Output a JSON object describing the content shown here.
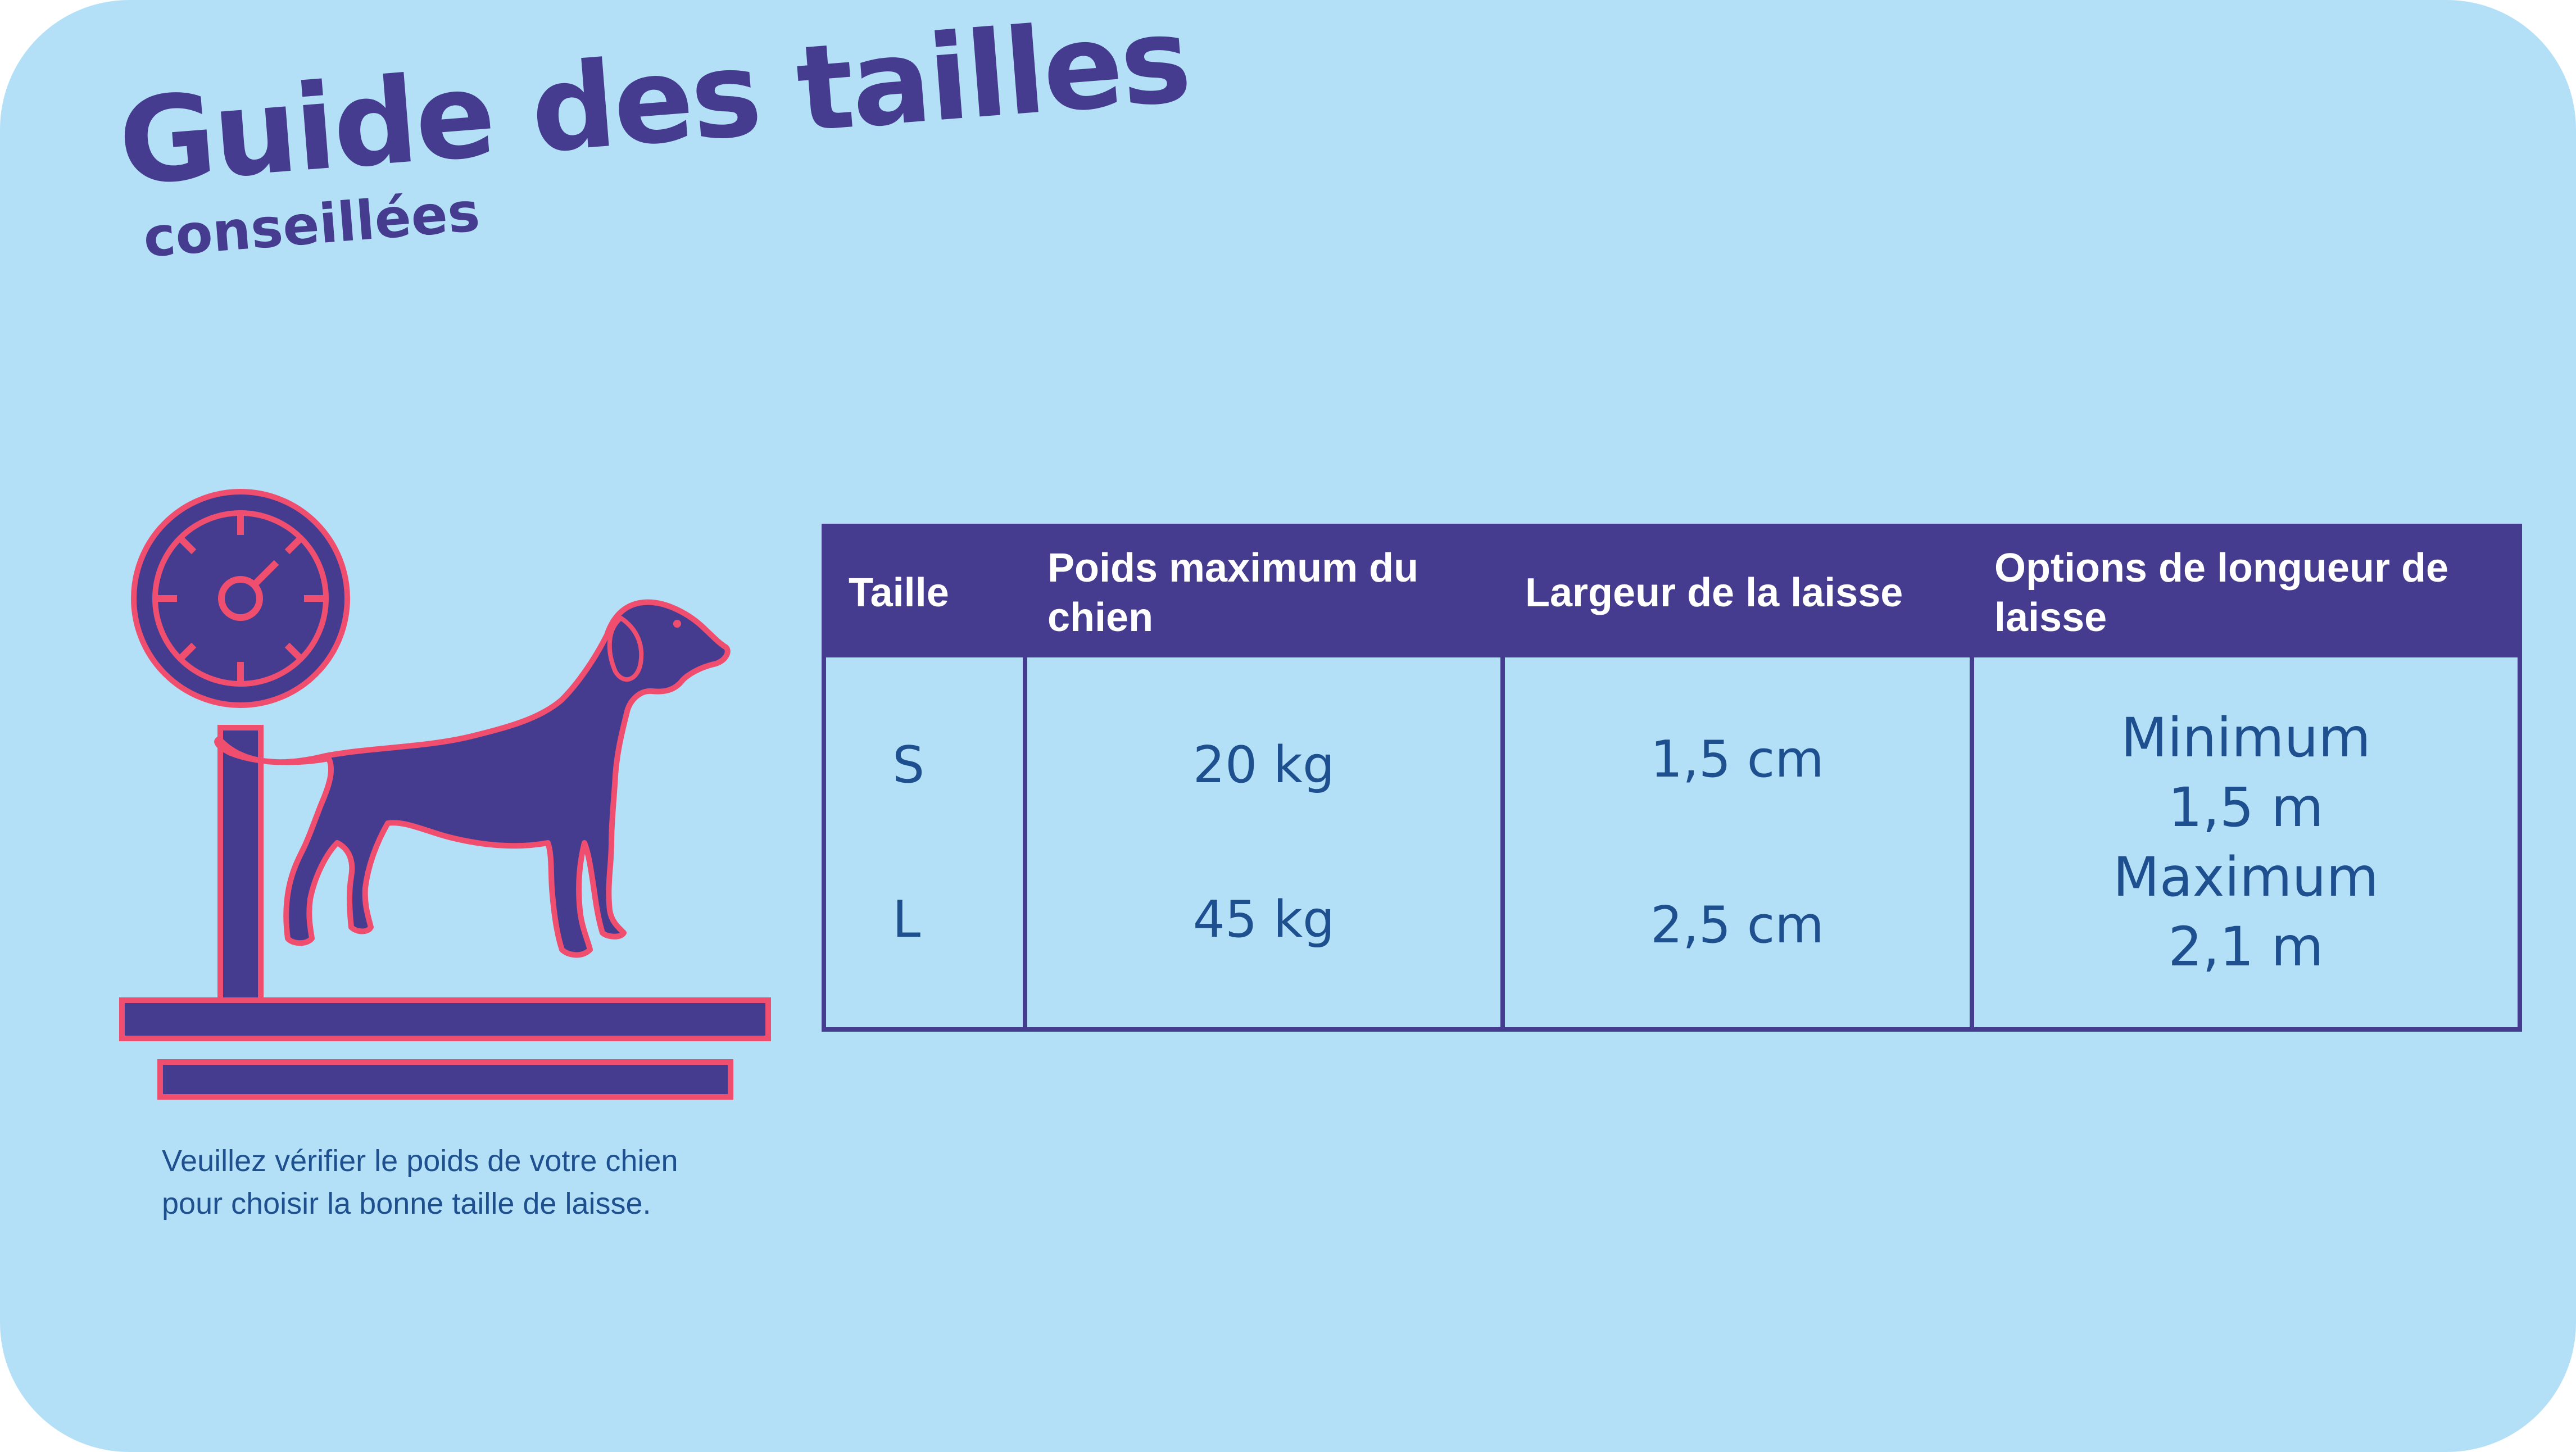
{
  "header": {
    "title": "Guide des tailles",
    "subtitle": "conseillées"
  },
  "note": {
    "line1": "Veuillez vérifier le poids de votre chien",
    "line2": "pour choisir la bonne taille de laisse."
  },
  "illustration": {
    "icon": "dog-on-scale-icon",
    "colors": {
      "fill": "#463c8f",
      "outline": "#f04e6e",
      "background": "#b3e0f7"
    }
  },
  "table": {
    "headers": [
      "Taille",
      "Poids maximum du chien",
      "Largeur de la laisse",
      "Options de longueur de laisse"
    ],
    "sizes": [
      "S",
      "L"
    ],
    "weights": [
      "20 kg",
      "45 kg"
    ],
    "widths": [
      "1,5 cm",
      "2,5 cm"
    ],
    "length_options": [
      "Minimum",
      "1,5 m",
      "Maximum",
      "2,1 m"
    ]
  },
  "colors": {
    "background": "#b3e0f7",
    "brand": "#463c8f",
    "accent": "#f04e6e",
    "text": "#1e4f8f"
  }
}
